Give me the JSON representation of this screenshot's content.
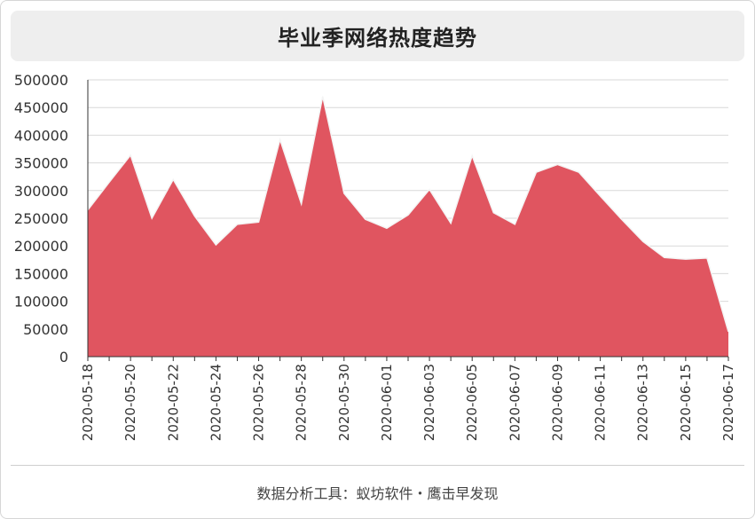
{
  "title": "毕业季网络热度趋势",
  "footer": "数据分析工具：蚁坊软件・鹰击早发现",
  "colors": {
    "area": "#e05560",
    "outline": "#f4f4f4",
    "grid": "#d9d9d9",
    "axis": "#333333"
  },
  "chart_data": {
    "type": "area",
    "title": "毕业季网络热度趋势",
    "xlabel": "",
    "ylabel": "",
    "ylim": [
      0,
      500000
    ],
    "yticks": [
      0,
      50000,
      100000,
      150000,
      200000,
      250000,
      300000,
      350000,
      400000,
      450000,
      500000
    ],
    "grid": true,
    "x": [
      "2020-05-18",
      "2020-05-19",
      "2020-05-20",
      "2020-05-21",
      "2020-05-22",
      "2020-05-23",
      "2020-05-24",
      "2020-05-25",
      "2020-05-26",
      "2020-05-27",
      "2020-05-28",
      "2020-05-29",
      "2020-05-30",
      "2020-05-31",
      "2020-06-01",
      "2020-06-02",
      "2020-06-03",
      "2020-06-04",
      "2020-06-05",
      "2020-06-06",
      "2020-06-07",
      "2020-06-08",
      "2020-06-09",
      "2020-06-10",
      "2020-06-11",
      "2020-06-12",
      "2020-06-13",
      "2020-06-14",
      "2020-06-15",
      "2020-06-16",
      "2020-06-17"
    ],
    "tick_labels": [
      "2020-05-18",
      "2020-05-20",
      "2020-05-22",
      "2020-05-24",
      "2020-05-26",
      "2020-05-28",
      "2020-05-30",
      "2020-06-01",
      "2020-06-03",
      "2020-06-05",
      "2020-06-07",
      "2020-06-09",
      "2020-06-11",
      "2020-06-13",
      "2020-06-15",
      "2020-06-17"
    ],
    "series": [
      {
        "values": [
          265000,
          315000,
          364000,
          250000,
          320000,
          254000,
          202000,
          239000,
          243000,
          392000,
          276000,
          470000,
          295000,
          248000,
          232000,
          256000,
          302000,
          241000,
          363000,
          260000,
          239000,
          333000,
          347000,
          333000,
          290000,
          248000,
          208000,
          179000,
          176000,
          178000,
          45000
        ]
      }
    ]
  }
}
